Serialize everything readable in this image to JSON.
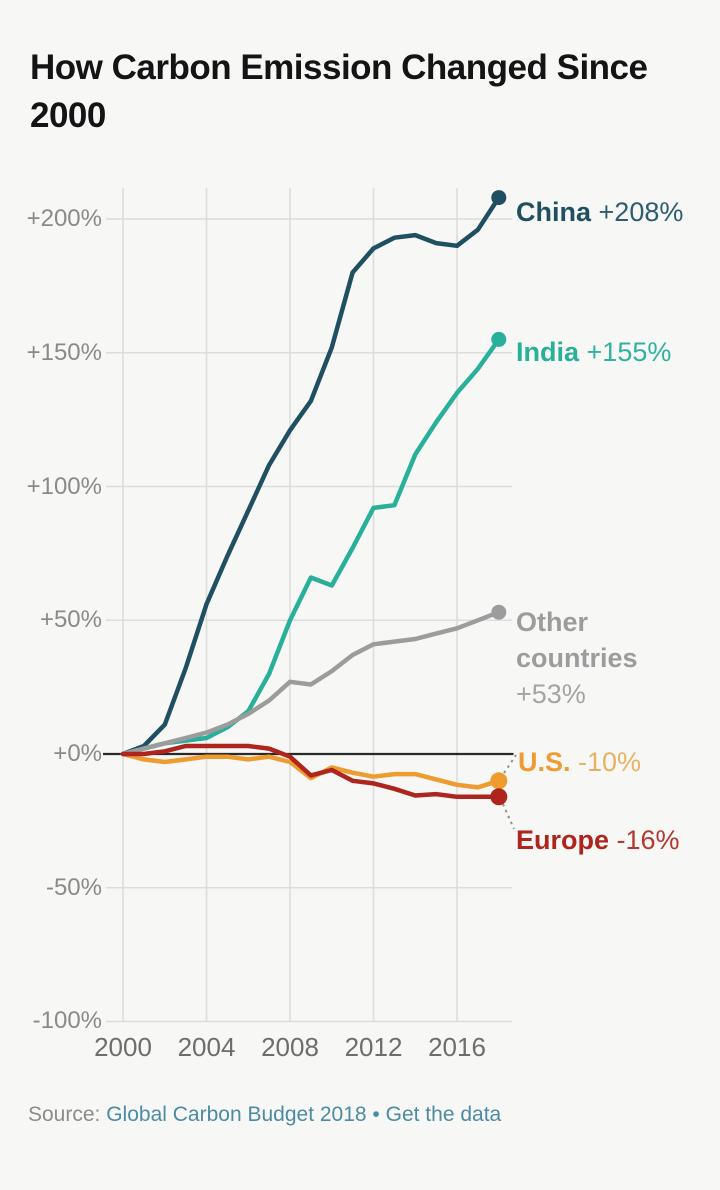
{
  "page": {
    "background": "#f7f7f6"
  },
  "title": "How Carbon Emission Changed Since 2000",
  "source": {
    "prefix": "Source:",
    "link1": "Global Carbon Budget 2018",
    "separator": "•",
    "link2": "Get the data",
    "text_color": "#8c8c8c",
    "link_color": "#4d8ba3"
  },
  "chart_data": {
    "type": "line",
    "title": "How Carbon Emission Changed Since 2000",
    "xlabel": "",
    "ylabel": "",
    "grid": true,
    "grid_color": "#dcdcdc",
    "zero_line_color": "#2a2a2a",
    "leader_color": "#8f8f8f",
    "xlim": [
      2000,
      2018
    ],
    "ylim": [
      -100,
      215
    ],
    "legend_position": "labels-at-line-ends",
    "x": [
      2000,
      2001,
      2002,
      2003,
      2004,
      2005,
      2006,
      2007,
      2008,
      2009,
      2010,
      2011,
      2012,
      2013,
      2014,
      2015,
      2016,
      2017,
      2018
    ],
    "xticks": [
      {
        "value": 2000,
        "label": "2000"
      },
      {
        "value": 2004,
        "label": "2004"
      },
      {
        "value": 2008,
        "label": "2008"
      },
      {
        "value": 2012,
        "label": "2012"
      },
      {
        "value": 2016,
        "label": "2016"
      }
    ],
    "yticks": [
      {
        "value": 200,
        "label": "+200%"
      },
      {
        "value": 150,
        "label": "+150%"
      },
      {
        "value": 100,
        "label": "+100%"
      },
      {
        "value": 50,
        "label": "+50%"
      },
      {
        "value": 0,
        "label": "+0%"
      },
      {
        "value": -50,
        "label": "-50%"
      },
      {
        "value": -100,
        "label": "-100%"
      }
    ],
    "series": [
      {
        "id": "china",
        "name": "China",
        "label": "China",
        "value_label": "+208%",
        "color": "#1f4f61",
        "value_color": "#2c5d70",
        "values": [
          0,
          3,
          11,
          32,
          56,
          74,
          91,
          108,
          121,
          132,
          152,
          180,
          189,
          193,
          194,
          191,
          190,
          196,
          208
        ]
      },
      {
        "id": "india",
        "name": "India",
        "label": "India",
        "value_label": "+155%",
        "color": "#29b09a",
        "value_color": "#2fb3a0",
        "values": [
          0,
          2,
          4,
          5,
          6,
          10,
          16,
          30,
          50,
          66,
          63,
          77,
          92,
          93,
          112,
          124,
          135,
          144,
          155
        ]
      },
      {
        "id": "other-countries",
        "name": "Other countries",
        "label": "Other countries",
        "value_label": "+53%",
        "color": "#9c9c9c",
        "value_color": "#a4a4a4",
        "values": [
          0,
          2,
          4,
          6,
          8,
          11,
          15,
          20,
          27,
          26,
          31,
          37,
          41,
          42,
          43,
          45,
          47,
          50,
          53
        ]
      },
      {
        "id": "us",
        "name": "U.S.",
        "label": "U.S.",
        "value_label": "-10%",
        "color": "#ee9b30",
        "value_color": "#e9b263",
        "values": [
          0,
          -2,
          -3,
          -2,
          -1,
          -1,
          -2,
          -1,
          -3,
          -9,
          -5,
          -7,
          -8.5,
          -7.5,
          -7.5,
          -9.5,
          -11.5,
          -12.5,
          -10
        ]
      },
      {
        "id": "europe",
        "name": "Europe",
        "label": "Europe",
        "value_label": "-16%",
        "color": "#ae251d",
        "value_color": "#b5372e",
        "values": [
          0,
          0,
          1,
          3,
          3,
          3,
          3,
          2,
          -1,
          -8,
          -6,
          -10,
          -11,
          -13,
          -15.5,
          -15,
          -16,
          -16,
          -16
        ]
      }
    ]
  }
}
